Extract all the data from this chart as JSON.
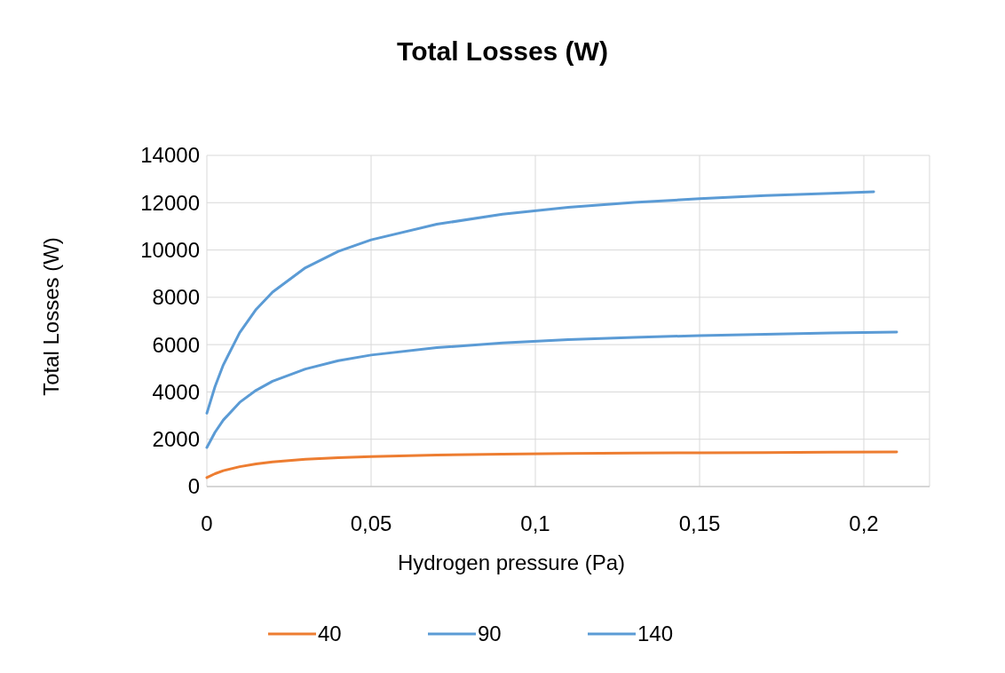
{
  "chart_data": {
    "type": "line",
    "title": "Total Losses (W)",
    "xlabel": "Hydrogen pressure (Pa)",
    "ylabel": "Total Losses (W)",
    "x": [
      0,
      0.0025,
      0.005,
      0.01,
      0.015,
      0.02,
      0.03,
      0.04,
      0.05,
      0.07,
      0.09,
      0.11,
      0.13,
      0.15,
      0.17,
      0.19,
      0.21
    ],
    "series": [
      {
        "name": "40",
        "color": "#ed7d31",
        "values": [
          380,
          545,
          670,
          840,
          960,
          1040,
          1150,
          1220,
          1270,
          1330,
          1370,
          1400,
          1420,
          1430,
          1440,
          1450,
          1460
        ]
      },
      {
        "name": "90",
        "color": "#5b9bd5",
        "values": [
          1650,
          2300,
          2810,
          3560,
          4070,
          4450,
          4970,
          5320,
          5560,
          5870,
          6070,
          6210,
          6310,
          6380,
          6440,
          6490,
          6530
        ]
      },
      {
        "name": "140",
        "color": "#5b9bd5",
        "x": [
          0,
          0.0025,
          0.005,
          0.01,
          0.015,
          0.02,
          0.03,
          0.04,
          0.05,
          0.07,
          0.09,
          0.11,
          0.13,
          0.15,
          0.17,
          0.19,
          0.203
        ],
        "values": [
          3100,
          4230,
          5140,
          6510,
          7490,
          8220,
          9250,
          9940,
          10430,
          11090,
          11510,
          11800,
          12010,
          12170,
          12300,
          12400,
          12460
        ]
      }
    ],
    "xlim": [
      0,
      0.22
    ],
    "xticks": [
      0,
      {
        "value": 0.05,
        "label": "0,05"
      },
      {
        "value": 0.1,
        "label": "0,1"
      },
      {
        "value": 0.15,
        "label": "0,15"
      },
      {
        "value": 0.2,
        "label": "0,2"
      }
    ],
    "ylim": [
      0,
      14000
    ],
    "yticks": [
      0,
      2000,
      4000,
      6000,
      8000,
      10000,
      12000,
      14000
    ],
    "grid": true,
    "legend": "bottom",
    "marker": "none",
    "line_style": "solid"
  }
}
